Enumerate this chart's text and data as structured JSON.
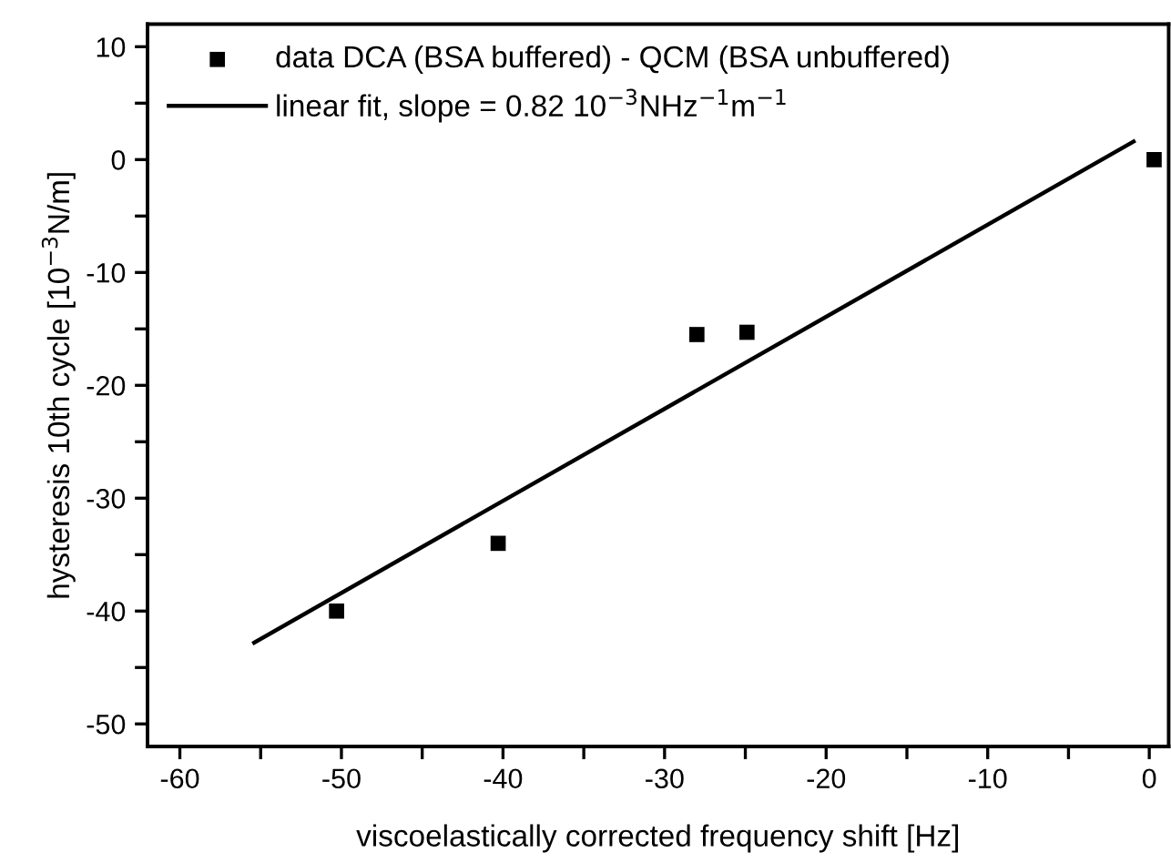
{
  "chart_data": {
    "type": "scatter",
    "xlabel": "viscoelastically corrected frequency shift [Hz]",
    "ylabel": "hysteresis 10th cycle [10$^{−3}$N/m]",
    "series": [
      {
        "name": "data DCA (BSA buffered) - QCM (BSA unbuffered)",
        "color": "#000000",
        "marker": "square",
        "x": [
          -50.3,
          -40.3,
          -28.0,
          -24.9,
          0.3
        ],
        "values": [
          -40.0,
          -34.0,
          -15.5,
          -15.3,
          0.0
        ]
      },
      {
        "name": "linear fit, slope = 0.82 10$^{−3}$NHz$^{−1}$m$^{−1}$",
        "type": "line",
        "color": "#000000",
        "marker": "none",
        "line_style": "solid",
        "x": [
          -55.4,
          -0.97
        ],
        "values": [
          -42.8,
          1.6
        ]
      }
    ],
    "xlim": [
      -62,
      1.2
    ],
    "ylim": [
      -52,
      12
    ],
    "xticks": [
      -60,
      {
        "value": -55,
        "label": null
      },
      -50,
      {
        "value": -45,
        "label": null
      },
      -40,
      {
        "value": -35,
        "label": null
      },
      -30,
      {
        "value": -25,
        "label": null
      },
      -20,
      {
        "value": -15,
        "label": null
      },
      -10,
      {
        "value": -5,
        "label": null
      },
      0
    ],
    "yticks": [
      -50,
      {
        "value": -45,
        "label": null
      },
      -40,
      {
        "value": -35,
        "label": null
      },
      -30,
      {
        "value": -25,
        "label": null
      },
      -20,
      {
        "value": -15,
        "label": null
      },
      -10,
      {
        "value": -5,
        "label": null
      },
      0,
      {
        "value": 5,
        "label": null
      },
      10
    ],
    "grid": false,
    "legend": "top left"
  }
}
